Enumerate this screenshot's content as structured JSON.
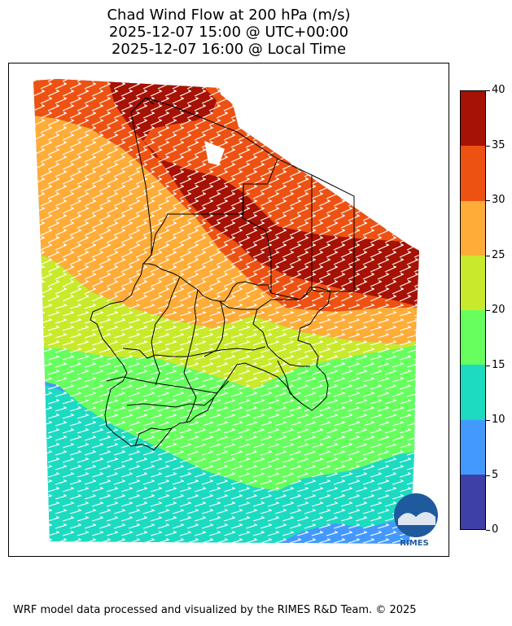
{
  "title": {
    "line1": "Chad Wind Flow at 200 hPa (m/s)",
    "line2": "2025-12-07 15:00 @ UTC+00:00",
    "line3": "2025-12-07 16:00 @ Local Time"
  },
  "colorbar": {
    "ticks": [
      "0",
      "5",
      "10",
      "15",
      "20",
      "25",
      "30",
      "35",
      "40"
    ],
    "bands": [
      {
        "range": "0-5",
        "color": "#3f3fa8"
      },
      {
        "range": "5-10",
        "color": "#4499ff"
      },
      {
        "range": "10-15",
        "color": "#1cdbc0"
      },
      {
        "range": "15-20",
        "color": "#66ff5e"
      },
      {
        "range": "20-25",
        "color": "#c9ea2c"
      },
      {
        "range": "25-30",
        "color": "#ffac38"
      },
      {
        "range": "30-35",
        "color": "#ee5212"
      },
      {
        "range": "35-40",
        "color": "#a61204"
      }
    ]
  },
  "logo": {
    "text": "RIMES"
  },
  "footer": {
    "text": "WRF model data processed and visualized by the RIMES R&D Team. © 2025"
  }
}
